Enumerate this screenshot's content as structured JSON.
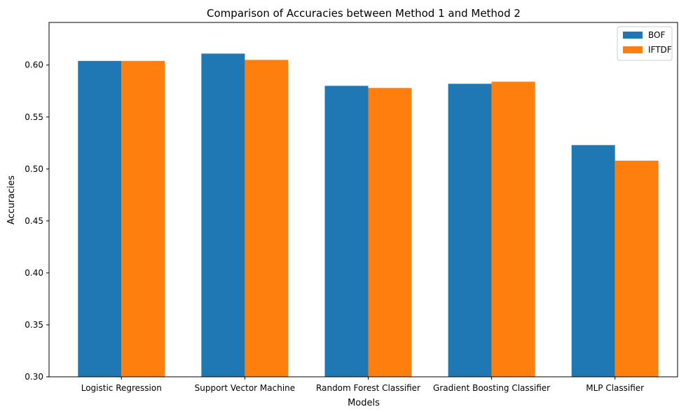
{
  "chart_data": {
    "type": "bar",
    "title": "Comparison of Accuracies between Method 1 and Method 2",
    "xlabel": "Models",
    "ylabel": "Accuracies",
    "categories": [
      "Logistic Regression",
      "Support Vector Machine",
      "Random Forest Classifier",
      "Gradient Boosting Classifier",
      "MLP Classifier"
    ],
    "series": [
      {
        "name": "BOF",
        "color": "#1f77b4",
        "values": [
          0.604,
          0.611,
          0.58,
          0.582,
          0.523
        ]
      },
      {
        "name": "IFTDF",
        "color": "#ff7f0e",
        "values": [
          0.604,
          0.605,
          0.578,
          0.584,
          0.508
        ]
      }
    ],
    "ylim": [
      0.3,
      0.641
    ],
    "yticks": [
      "0.30",
      "0.35",
      "0.40",
      "0.45",
      "0.50",
      "0.55",
      "0.60"
    ],
    "grid": false,
    "legend_position": "top-right"
  }
}
